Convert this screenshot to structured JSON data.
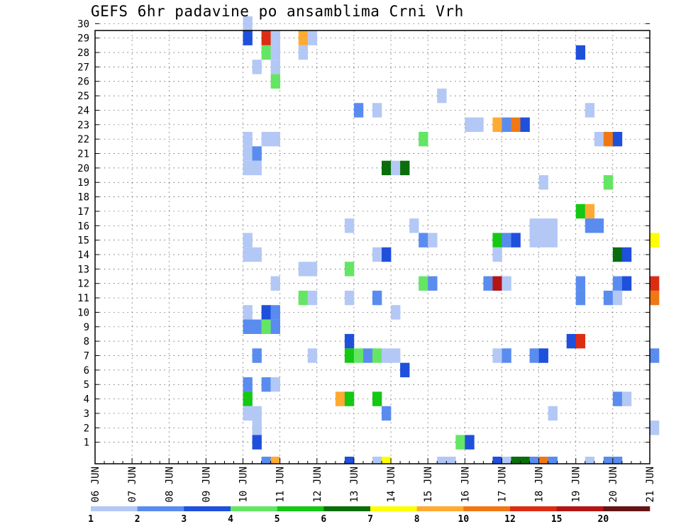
{
  "chart_data": {
    "type": "heatmap",
    "title": "GEFS 6hr padavine po ansamblima Crni Vrh",
    "xlabel": "",
    "ylabel": "",
    "x_tick_labels": [
      "06 JUN",
      "07 JUN",
      "08 JUN",
      "09 JUN",
      "10 JUN",
      "11 JUN",
      "12 JUN",
      "13 JUN",
      "14 JUN",
      "15 JUN",
      "16 JUN",
      "17 JUN",
      "18 JUN",
      "19 JUN",
      "20 JUN",
      "21 JUN"
    ],
    "x_range": [
      "06 JUN 00Z",
      "21 JUN 00Z"
    ],
    "x_step_hours": 6,
    "y_tick_labels": [
      "1",
      "2",
      "3",
      "4",
      "5",
      "6",
      "7",
      "8",
      "9",
      "10",
      "11",
      "12",
      "13",
      "14",
      "15",
      "16",
      "17",
      "18",
      "19",
      "20",
      "21",
      "22",
      "23",
      "24",
      "25",
      "26",
      "27",
      "28",
      "29",
      "30"
    ],
    "y_range": [
      0,
      30
    ],
    "grid": true,
    "legend": {
      "placement": "bottom",
      "levels": [
        "1",
        "2",
        "3",
        "4",
        "5",
        "6",
        "7",
        "8",
        "10",
        "12",
        "15",
        "20"
      ],
      "colors": [
        "#b4c8f5",
        "#5a8cf0",
        "#1e50dc",
        "#64e664",
        "#14c814",
        "#0a6e0a",
        "#ffff00",
        "#ffaa32",
        "#f07814",
        "#dc2d14",
        "#b41414",
        "#641414"
      ]
    },
    "colors": {
      "1": "#b4c8f5",
      "2": "#5a8cf0",
      "3": "#1e50dc",
      "4": "#64e664",
      "5": "#14c814",
      "6": "#0a6e0a",
      "7": "#ffff00",
      "8": "#ffaa32",
      "9": "#f07814",
      "10": "#dc2d14",
      "11": "#b41414",
      "12": "#641414"
    },
    "note_cells": "each cell = [time step index (6h from 06 JUN 00Z), ensemble member, color class 1-12]",
    "cells": [
      [
        16,
        30,
        1
      ],
      [
        16,
        29,
        3
      ],
      [
        16,
        22,
        1
      ],
      [
        16,
        21,
        1
      ],
      [
        16,
        20,
        1
      ],
      [
        16,
        15,
        1
      ],
      [
        16,
        14,
        1
      ],
      [
        16,
        10,
        1
      ],
      [
        16,
        9,
        2
      ],
      [
        16,
        5,
        2
      ],
      [
        16,
        4,
        5
      ],
      [
        16,
        3,
        1
      ],
      [
        17,
        27,
        1
      ],
      [
        17,
        21,
        2
      ],
      [
        17,
        20,
        1
      ],
      [
        17,
        14,
        1
      ],
      [
        17,
        9,
        2
      ],
      [
        17,
        7,
        2
      ],
      [
        17,
        3,
        1
      ],
      [
        17,
        2,
        1
      ],
      [
        17,
        1,
        3
      ],
      [
        18,
        29,
        10
      ],
      [
        18,
        28,
        4
      ],
      [
        18,
        22,
        1
      ],
      [
        18,
        10,
        3
      ],
      [
        18,
        9,
        4
      ],
      [
        18,
        5,
        2
      ],
      [
        18,
        0,
        2
      ],
      [
        19,
        29,
        1
      ],
      [
        19,
        28,
        1
      ],
      [
        19,
        27,
        1
      ],
      [
        19,
        26,
        4
      ],
      [
        19,
        22,
        1
      ],
      [
        19,
        12,
        1
      ],
      [
        19,
        10,
        2
      ],
      [
        19,
        9,
        2
      ],
      [
        19,
        5,
        1
      ],
      [
        19,
        0,
        8
      ],
      [
        22,
        29,
        8
      ],
      [
        22,
        28,
        1
      ],
      [
        22,
        13,
        1
      ],
      [
        22,
        11,
        4
      ],
      [
        23,
        29,
        1
      ],
      [
        23,
        13,
        1
      ],
      [
        23,
        11,
        1
      ],
      [
        23,
        7,
        1
      ],
      [
        26,
        4,
        8
      ],
      [
        27,
        16,
        1
      ],
      [
        27,
        13,
        4
      ],
      [
        27,
        11,
        1
      ],
      [
        27,
        8,
        3
      ],
      [
        27,
        7,
        5
      ],
      [
        27,
        4,
        5
      ],
      [
        27,
        0,
        3
      ],
      [
        28,
        24,
        2
      ],
      [
        28,
        7,
        4
      ],
      [
        29,
        7,
        2
      ],
      [
        30,
        24,
        1
      ],
      [
        30,
        14,
        1
      ],
      [
        30,
        11,
        2
      ],
      [
        30,
        7,
        4
      ],
      [
        30,
        4,
        5
      ],
      [
        30,
        0,
        1
      ],
      [
        31,
        20,
        6
      ],
      [
        31,
        14,
        3
      ],
      [
        31,
        7,
        1
      ],
      [
        31,
        3,
        2
      ],
      [
        31,
        0,
        7
      ],
      [
        32,
        20,
        1
      ],
      [
        32,
        10,
        1
      ],
      [
        32,
        7,
        1
      ],
      [
        33,
        20,
        6
      ],
      [
        33,
        6,
        3
      ],
      [
        34,
        16,
        1
      ],
      [
        35,
        22,
        4
      ],
      [
        35,
        15,
        2
      ],
      [
        35,
        12,
        4
      ],
      [
        36,
        15,
        1
      ],
      [
        36,
        12,
        2
      ],
      [
        37,
        25,
        1
      ],
      [
        37,
        0,
        1
      ],
      [
        38,
        0,
        1
      ],
      [
        39,
        1,
        4
      ],
      [
        40,
        23,
        1
      ],
      [
        40,
        1,
        3
      ],
      [
        41,
        23,
        1
      ],
      [
        42,
        12,
        2
      ],
      [
        43,
        23,
        8
      ],
      [
        43,
        15,
        5
      ],
      [
        43,
        14,
        1
      ],
      [
        43,
        12,
        11
      ],
      [
        43,
        7,
        1
      ],
      [
        43,
        0,
        3
      ],
      [
        44,
        23,
        2
      ],
      [
        44,
        15,
        2
      ],
      [
        44,
        12,
        1
      ],
      [
        44,
        7,
        2
      ],
      [
        44,
        0,
        1
      ],
      [
        45,
        23,
        9
      ],
      [
        45,
        15,
        3
      ],
      [
        45,
        0,
        6
      ],
      [
        46,
        23,
        3
      ],
      [
        46,
        0,
        6
      ],
      [
        47,
        16,
        1
      ],
      [
        47,
        15,
        1
      ],
      [
        47,
        7,
        2
      ],
      [
        47,
        0,
        2
      ],
      [
        48,
        19,
        1
      ],
      [
        48,
        16,
        1
      ],
      [
        48,
        15,
        1
      ],
      [
        48,
        7,
        3
      ],
      [
        48,
        0,
        9
      ],
      [
        49,
        16,
        1
      ],
      [
        49,
        15,
        1
      ],
      [
        49,
        3,
        1
      ],
      [
        49,
        0,
        2
      ],
      [
        51,
        8,
        3
      ],
      [
        52,
        28,
        3
      ],
      [
        52,
        17,
        5
      ],
      [
        52,
        12,
        2
      ],
      [
        52,
        11,
        2
      ],
      [
        52,
        8,
        10
      ],
      [
        53,
        24,
        1
      ],
      [
        53,
        17,
        8
      ],
      [
        53,
        16,
        2
      ],
      [
        53,
        0,
        1
      ],
      [
        54,
        22,
        1
      ],
      [
        54,
        16,
        2
      ],
      [
        55,
        22,
        9
      ],
      [
        55,
        19,
        4
      ],
      [
        55,
        11,
        2
      ],
      [
        55,
        0,
        2
      ],
      [
        56,
        22,
        3
      ],
      [
        56,
        14,
        6
      ],
      [
        56,
        12,
        2
      ],
      [
        56,
        11,
        1
      ],
      [
        56,
        4,
        2
      ],
      [
        56,
        0,
        2
      ],
      [
        57,
        14,
        3
      ],
      [
        57,
        12,
        3
      ],
      [
        57,
        4,
        1
      ],
      [
        60,
        15,
        7
      ],
      [
        60,
        12,
        10
      ],
      [
        60,
        11,
        9
      ],
      [
        60,
        7,
        2
      ],
      [
        60,
        2,
        1
      ]
    ]
  }
}
